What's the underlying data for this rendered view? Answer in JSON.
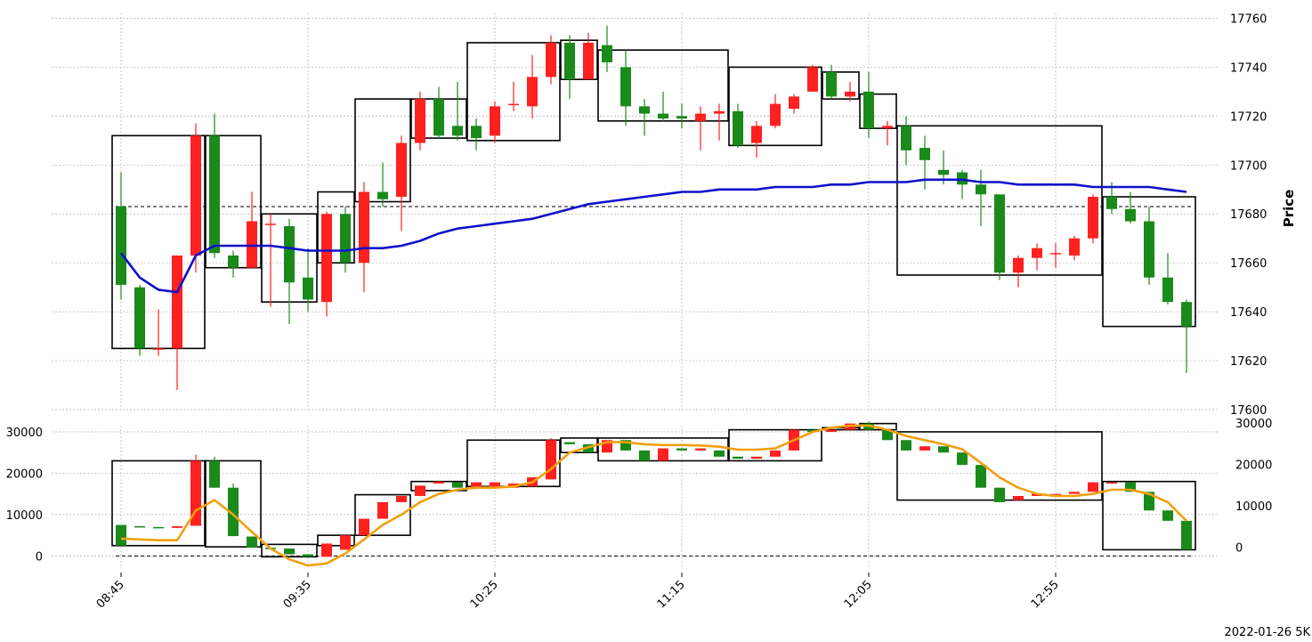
{
  "footer": {
    "stamp": "2022-01-26 5K"
  },
  "colors": {
    "up": "#1a8a1a",
    "down": "#ff2020",
    "price_ma": "#1010cc",
    "vol_ma": "#f0a010",
    "box": "#000000",
    "grid": "#b0b0b0"
  },
  "chart_data": [
    {
      "type": "candlestick",
      "panel": "price",
      "ylabel": "Price",
      "ylim": [
        17600,
        17762
      ],
      "yticks": [
        17600,
        17620,
        17640,
        17660,
        17680,
        17700,
        17720,
        17740,
        17760
      ],
      "xticks": [
        {
          "index": 0,
          "label": "08:45"
        },
        {
          "index": 10,
          "label": "09:35"
        },
        {
          "index": 20,
          "label": "10:25"
        },
        {
          "index": 30,
          "label": "11:15"
        },
        {
          "index": 40,
          "label": "12:05"
        },
        {
          "index": 50,
          "label": "12:55"
        }
      ],
      "reference_line": 17683,
      "candles": [
        [
          17683,
          17697,
          17645,
          17651
        ],
        [
          17650,
          17651,
          17622,
          17625
        ],
        [
          17625,
          17641,
          17622,
          17625
        ],
        [
          17625,
          17663,
          17608,
          17663
        ],
        [
          17663,
          17717,
          17656,
          17712
        ],
        [
          17712,
          17721,
          17662,
          17664
        ],
        [
          17663,
          17665,
          17654,
          17658
        ],
        [
          17658,
          17689,
          17658,
          17677
        ],
        [
          17676,
          17680,
          17642,
          17676
        ],
        [
          17675,
          17678,
          17635,
          17652
        ],
        [
          17654,
          17666,
          17640,
          17645
        ],
        [
          17644,
          17681,
          17638,
          17680
        ],
        [
          17680,
          17683,
          17656,
          17660
        ],
        [
          17660,
          17693,
          17648,
          17689
        ],
        [
          17689,
          17701,
          17683,
          17686
        ],
        [
          17687,
          17712,
          17673,
          17709
        ],
        [
          17709,
          17730,
          17706,
          17727
        ],
        [
          17727,
          17732,
          17711,
          17712
        ],
        [
          17716,
          17734,
          17710,
          17712
        ],
        [
          17716,
          17719,
          17706,
          17711
        ],
        [
          17712,
          17726,
          17709,
          17724
        ],
        [
          17725,
          17734,
          17722,
          17725
        ],
        [
          17724,
          17745,
          17719,
          17736
        ],
        [
          17736,
          17753,
          17733,
          17750
        ],
        [
          17750,
          17753,
          17727,
          17735
        ],
        [
          17735,
          17754,
          17735,
          17750
        ],
        [
          17749,
          17757,
          17738,
          17742
        ],
        [
          17740,
          17747,
          17716,
          17724
        ],
        [
          17724,
          17727,
          17712,
          17721
        ],
        [
          17721,
          17730,
          17718,
          17719
        ],
        [
          17720,
          17725,
          17715,
          17719
        ],
        [
          17718,
          17724,
          17706,
          17721
        ],
        [
          17721,
          17725,
          17710,
          17722
        ],
        [
          17722,
          17725,
          17707,
          17708
        ],
        [
          17709,
          17718,
          17703,
          17716
        ],
        [
          17716,
          17729,
          17715,
          17725
        ],
        [
          17723,
          17729,
          17721,
          17728
        ],
        [
          17730,
          17741,
          17730,
          17740
        ],
        [
          17738,
          17741,
          17727,
          17728
        ],
        [
          17728,
          17734,
          17726,
          17730
        ],
        [
          17730,
          17738,
          17711,
          17715
        ],
        [
          17715,
          17718,
          17708,
          17716
        ],
        [
          17716,
          17720,
          17700,
          17706
        ],
        [
          17707,
          17712,
          17690,
          17702
        ],
        [
          17698,
          17706,
          17692,
          17696
        ],
        [
          17697,
          17698,
          17686,
          17692
        ],
        [
          17692,
          17698,
          17675,
          17688
        ],
        [
          17688,
          17688,
          17653,
          17656
        ],
        [
          17656,
          17663,
          17650,
          17662
        ],
        [
          17662,
          17668,
          17657,
          17666
        ],
        [
          17664,
          17668,
          17658,
          17664
        ],
        [
          17663,
          17671,
          17661,
          17670
        ],
        [
          17670,
          17688,
          17668,
          17687
        ],
        [
          17687,
          17693,
          17680,
          17682
        ],
        [
          17682,
          17689,
          17676,
          17677
        ],
        [
          17677,
          17683,
          17651,
          17654
        ],
        [
          17654,
          17664,
          17643,
          17644
        ],
        [
          17644,
          17645,
          17615,
          17634
        ]
      ],
      "ma_line": [
        17664,
        17654,
        17649,
        17648,
        17663,
        17667,
        17667,
        17667,
        17667,
        17666,
        17665,
        17665,
        17665,
        17666,
        17666,
        17667,
        17669,
        17672,
        17674,
        17675,
        17676,
        17677,
        17678,
        17680,
        17682,
        17684,
        17685,
        17686,
        17687,
        17688,
        17689,
        17689,
        17690,
        17690,
        17690,
        17691,
        17691,
        17691,
        17692,
        17692,
        17693,
        17693,
        17693,
        17694,
        17694,
        17694,
        17693,
        17693,
        17692,
        17692,
        17692,
        17692,
        17691,
        17691,
        17691,
        17691,
        17690,
        17689
      ],
      "boxes": [
        {
          "i0": 0,
          "i1": 4,
          "top": 17712,
          "bottom": 17625
        },
        {
          "i0": 5,
          "i1": 7,
          "top": 17712,
          "bottom": 17658
        },
        {
          "i0": 8,
          "i1": 10,
          "top": 17680,
          "bottom": 17644
        },
        {
          "i0": 11,
          "i1": 12,
          "top": 17689,
          "bottom": 17660
        },
        {
          "i0": 13,
          "i1": 15,
          "top": 17727,
          "bottom": 17685
        },
        {
          "i0": 16,
          "i1": 18,
          "top": 17727,
          "bottom": 17711
        },
        {
          "i0": 19,
          "i1": 23,
          "top": 17750,
          "bottom": 17710
        },
        {
          "i0": 24,
          "i1": 25,
          "top": 17751,
          "bottom": 17735
        },
        {
          "i0": 26,
          "i1": 32,
          "top": 17747,
          "bottom": 17718
        },
        {
          "i0": 33,
          "i1": 37,
          "top": 17740,
          "bottom": 17708
        },
        {
          "i0": 38,
          "i1": 39,
          "top": 17738,
          "bottom": 17727
        },
        {
          "i0": 40,
          "i1": 41,
          "top": 17729,
          "bottom": 17715
        },
        {
          "i0": 42,
          "i1": 52,
          "top": 17716,
          "bottom": 17655
        },
        {
          "i0": 53,
          "i1": 57,
          "top": 17687,
          "bottom": 17634
        }
      ]
    },
    {
      "type": "candlestick",
      "panel": "volume",
      "ylim": [
        -2500,
        31500
      ],
      "yticks_left": [
        0,
        10000,
        20000,
        30000
      ],
      "yticks_right": [
        0,
        10000,
        20000,
        30000
      ],
      "reference_line": 0,
      "candles": [
        [
          7500,
          7500,
          2500,
          2500
        ],
        [
          7200,
          7200,
          7000,
          7000
        ],
        [
          7000,
          7000,
          6800,
          6800
        ],
        [
          6800,
          7200,
          6800,
          7200
        ],
        [
          7300,
          24500,
          7300,
          23000
        ],
        [
          23000,
          24000,
          16500,
          16500
        ],
        [
          16500,
          17500,
          4800,
          4800
        ],
        [
          4700,
          4700,
          2000,
          2000
        ],
        [
          2000,
          2000,
          1700,
          1700
        ],
        [
          1800,
          1800,
          400,
          400
        ],
        [
          400,
          400,
          -200,
          -200
        ],
        [
          -200,
          3000,
          -200,
          3000
        ],
        [
          1500,
          5000,
          1500,
          5000
        ],
        [
          5000,
          9000,
          5000,
          9000
        ],
        [
          9000,
          13000,
          9000,
          13000
        ],
        [
          13000,
          14500,
          13000,
          14500
        ],
        [
          14500,
          17000,
          14500,
          17000
        ],
        [
          17500,
          18000,
          17500,
          18000
        ],
        [
          17800,
          17800,
          16500,
          16500
        ],
        [
          16500,
          17800,
          16500,
          17800
        ],
        [
          16500,
          17800,
          16500,
          17800
        ],
        [
          16500,
          17500,
          16500,
          17500
        ],
        [
          16800,
          19000,
          16800,
          19000
        ],
        [
          18500,
          28500,
          18500,
          28000
        ],
        [
          27500,
          27500,
          27000,
          27000
        ],
        [
          27000,
          27000,
          25000,
          25000
        ],
        [
          25000,
          28000,
          25000,
          28000
        ],
        [
          28000,
          28000,
          25500,
          25500
        ],
        [
          25500,
          25500,
          23000,
          23000
        ],
        [
          23000,
          26000,
          23000,
          26000
        ],
        [
          26000,
          26000,
          25500,
          25500
        ],
        [
          25500,
          26000,
          25500,
          26000
        ],
        [
          25500,
          25500,
          24000,
          24000
        ],
        [
          24000,
          24000,
          23500,
          23500
        ],
        [
          23500,
          24000,
          23500,
          24000
        ],
        [
          24000,
          25500,
          24000,
          25500
        ],
        [
          25500,
          30500,
          25500,
          30500
        ],
        [
          30500,
          30500,
          30000,
          30000
        ],
        [
          30000,
          30500,
          30000,
          30500
        ],
        [
          30500,
          32000,
          30500,
          32000
        ],
        [
          32000,
          32500,
          30500,
          30500
        ],
        [
          30500,
          30500,
          28000,
          28000
        ],
        [
          28000,
          28000,
          25500,
          25500
        ],
        [
          25500,
          26500,
          25500,
          26500
        ],
        [
          26500,
          26500,
          25000,
          25000
        ],
        [
          25000,
          25000,
          22000,
          22000
        ],
        [
          22000,
          22000,
          16500,
          16500
        ],
        [
          16500,
          16500,
          13000,
          13000
        ],
        [
          13500,
          14500,
          13500,
          14500
        ],
        [
          14500,
          15000,
          14500,
          15000
        ],
        [
          14500,
          15000,
          14500,
          15000
        ],
        [
          15000,
          15500,
          15000,
          15500
        ],
        [
          15500,
          17800,
          15500,
          17800
        ],
        [
          17800,
          17800,
          17800,
          17800
        ],
        [
          17800,
          17800,
          15500,
          15500
        ],
        [
          15500,
          15500,
          11000,
          11000
        ],
        [
          11000,
          11000,
          8500,
          8500
        ],
        [
          8500,
          8500,
          1500,
          1500
        ]
      ],
      "ma_line": [
        4200,
        4000,
        3800,
        3800,
        11000,
        13500,
        10000,
        5800,
        1800,
        -800,
        -2300,
        -1800,
        600,
        4000,
        7500,
        10000,
        13000,
        15000,
        16000,
        16500,
        16500,
        16800,
        17800,
        21000,
        25000,
        26300,
        27500,
        27500,
        27000,
        26800,
        26800,
        26700,
        26400,
        25700,
        25700,
        26000,
        28000,
        30000,
        31000,
        31500,
        31500,
        30500,
        29000,
        28000,
        27000,
        25800,
        22500,
        19000,
        16500,
        15000,
        14500,
        14500,
        15000,
        16000,
        16000,
        15000,
        13000,
        8500
      ],
      "boxes": [
        {
          "i0": 0,
          "i1": 4,
          "top": 23000,
          "bottom": 2500
        },
        {
          "i0": 5,
          "i1": 7,
          "top": 23000,
          "bottom": 2200
        },
        {
          "i0": 8,
          "i1": 10,
          "top": 2800,
          "bottom": -200
        },
        {
          "i0": 11,
          "i1": 12,
          "top": 5000,
          "bottom": 2500
        },
        {
          "i0": 13,
          "i1": 15,
          "top": 14800,
          "bottom": 5000
        },
        {
          "i0": 16,
          "i1": 18,
          "top": 18000,
          "bottom": 15800
        },
        {
          "i0": 19,
          "i1": 23,
          "top": 28000,
          "bottom": 16800
        },
        {
          "i0": 24,
          "i1": 25,
          "top": 28500,
          "bottom": 25000
        },
        {
          "i0": 26,
          "i1": 32,
          "top": 28500,
          "bottom": 23000
        },
        {
          "i0": 33,
          "i1": 37,
          "top": 30500,
          "bottom": 23000
        },
        {
          "i0": 38,
          "i1": 39,
          "top": 31000,
          "bottom": 30500
        },
        {
          "i0": 40,
          "i1": 41,
          "top": 32000,
          "bottom": 30500
        },
        {
          "i0": 42,
          "i1": 52,
          "top": 30000,
          "bottom": 13500
        },
        {
          "i0": 53,
          "i1": 57,
          "top": 18000,
          "bottom": 1500
        }
      ]
    }
  ]
}
